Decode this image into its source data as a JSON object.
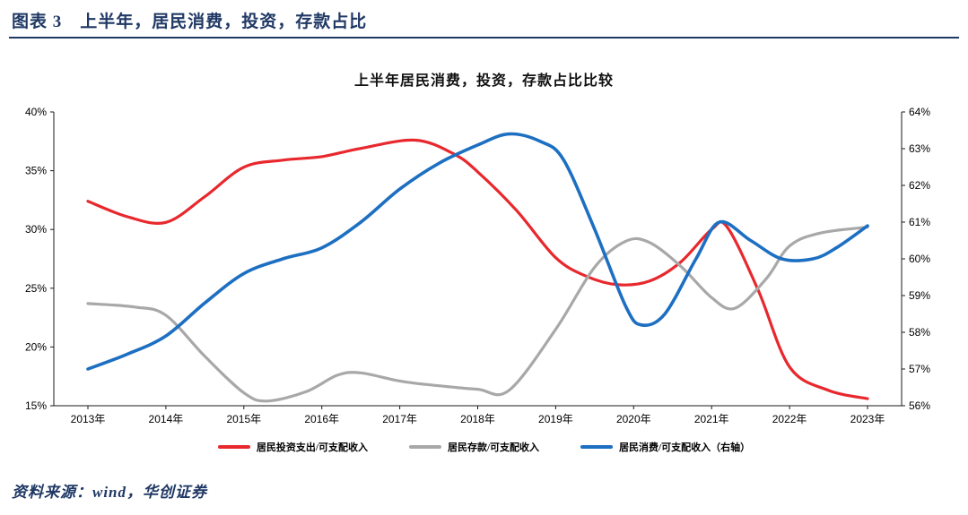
{
  "header": {
    "title": "图表 3　上半年，居民消费，投资，存款占比"
  },
  "footer": {
    "source": "资料来源：wind，华创证券"
  },
  "colors": {
    "accent_navy": "#1f3864",
    "series_red": "#e8282d",
    "series_gray": "#a8a8a8",
    "series_blue": "#1d6fc2",
    "axis_line": "#1a1a1a"
  },
  "chart_data": {
    "type": "line",
    "title": "上半年居民消费，投资，存款占比比较",
    "grid": false,
    "legend_position": "bottom",
    "x_range": [
      2013,
      2023
    ],
    "x_tick_labels": [
      "2013年",
      "2014年",
      "2015年",
      "2016年",
      "2017年",
      "2018年",
      "2019年",
      "2020年",
      "2021年",
      "2022年",
      "2023年"
    ],
    "left_axis": {
      "max": 40,
      "min": 15,
      "step": 5,
      "tick_labels": [
        "40%",
        "35%",
        "30%",
        "25%",
        "20%",
        "15%"
      ]
    },
    "right_axis": {
      "max": 64,
      "min": 56,
      "step": 1,
      "tick_labels": [
        "64%",
        "63%",
        "62%",
        "61%",
        "60%",
        "59%",
        "58%",
        "57%",
        "56%"
      ]
    },
    "series": [
      {
        "name": "居民投资支出/可支配收入",
        "axis": "left",
        "color": "#e8282d",
        "points": [
          [
            2013,
            32.4
          ],
          [
            2013.5,
            31.1
          ],
          [
            2014,
            30.6
          ],
          [
            2014.5,
            32.8
          ],
          [
            2015,
            35.3
          ],
          [
            2015.5,
            35.9
          ],
          [
            2016,
            36.2
          ],
          [
            2016.5,
            36.9
          ],
          [
            2017.2,
            37.6
          ],
          [
            2017.7,
            36.4
          ],
          [
            2018,
            34.9
          ],
          [
            2018.5,
            31.6
          ],
          [
            2019,
            27.6
          ],
          [
            2019.4,
            26.0
          ],
          [
            2019.8,
            25.3
          ],
          [
            2020.2,
            25.6
          ],
          [
            2020.6,
            27.2
          ],
          [
            2021,
            30.0
          ],
          [
            2021.2,
            30.2
          ],
          [
            2021.6,
            24.8
          ],
          [
            2022,
            18.3
          ],
          [
            2022.5,
            16.3
          ],
          [
            2023,
            15.6
          ]
        ]
      },
      {
        "name": "居民存款/可支配收入",
        "axis": "left",
        "color": "#a8a8a8",
        "points": [
          [
            2013,
            23.7
          ],
          [
            2013.6,
            23.4
          ],
          [
            2014,
            22.7
          ],
          [
            2014.5,
            19.2
          ],
          [
            2015,
            16.1
          ],
          [
            2015.3,
            15.4
          ],
          [
            2015.8,
            16.2
          ],
          [
            2016.2,
            17.6
          ],
          [
            2016.5,
            17.8
          ],
          [
            2017,
            17.1
          ],
          [
            2017.5,
            16.7
          ],
          [
            2018,
            16.4
          ],
          [
            2018.4,
            16.3
          ],
          [
            2019,
            21.5
          ],
          [
            2019.5,
            26.8
          ],
          [
            2019.9,
            29.0
          ],
          [
            2020.2,
            28.9
          ],
          [
            2020.6,
            26.9
          ],
          [
            2021,
            24.2
          ],
          [
            2021.3,
            23.3
          ],
          [
            2021.7,
            25.8
          ],
          [
            2022,
            28.6
          ],
          [
            2022.4,
            29.7
          ],
          [
            2023,
            30.2
          ]
        ]
      },
      {
        "name": "居民消费/可支配收入（右轴）",
        "axis": "right",
        "color": "#1d6fc2",
        "points": [
          [
            2013,
            57.0
          ],
          [
            2013.5,
            57.4
          ],
          [
            2014,
            57.9
          ],
          [
            2014.5,
            58.8
          ],
          [
            2015,
            59.6
          ],
          [
            2015.5,
            60.0
          ],
          [
            2016,
            60.3
          ],
          [
            2016.5,
            61.0
          ],
          [
            2017,
            61.9
          ],
          [
            2017.5,
            62.6
          ],
          [
            2018,
            63.1
          ],
          [
            2018.4,
            63.4
          ],
          [
            2018.8,
            63.2
          ],
          [
            2019.1,
            62.7
          ],
          [
            2019.5,
            60.8
          ],
          [
            2019.9,
            58.7
          ],
          [
            2020.1,
            58.2
          ],
          [
            2020.4,
            58.5
          ],
          [
            2020.8,
            60.0
          ],
          [
            2021.1,
            61.0
          ],
          [
            2021.5,
            60.5
          ],
          [
            2021.9,
            60.0
          ],
          [
            2022.3,
            60.0
          ],
          [
            2022.6,
            60.3
          ],
          [
            2023,
            60.9
          ]
        ]
      }
    ]
  }
}
